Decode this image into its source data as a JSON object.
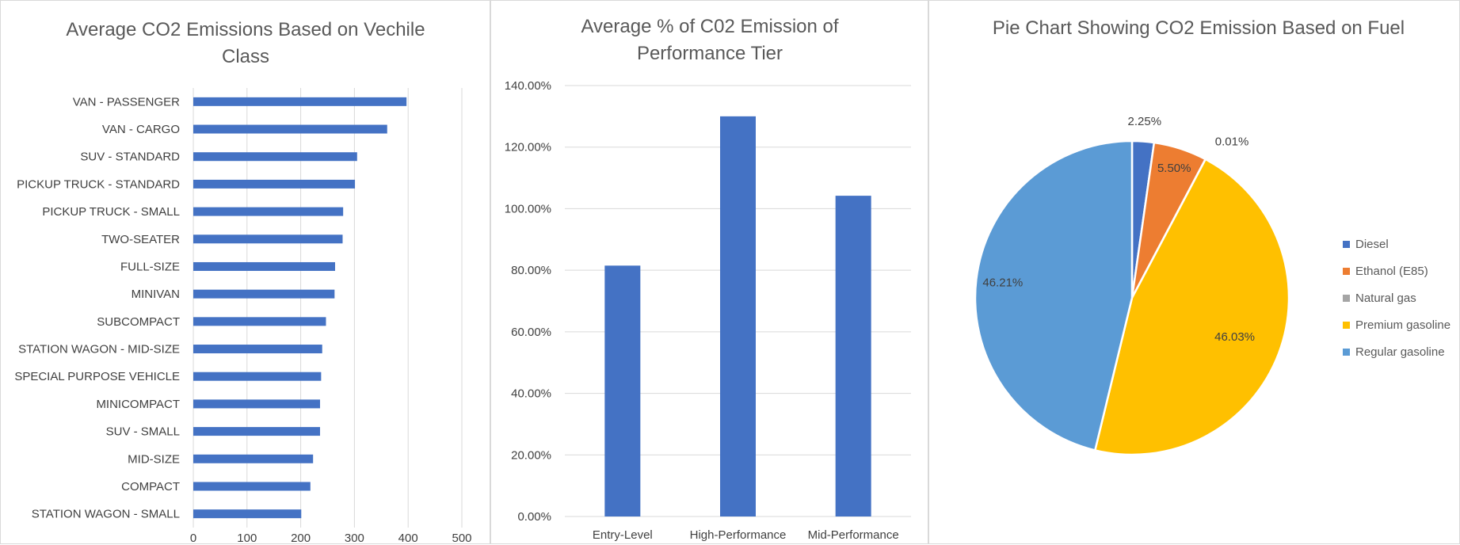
{
  "chart_data": [
    {
      "type": "bar",
      "orientation": "horizontal",
      "title_lines": [
        "Average CO2 Emissions Based on Vechile",
        "Class"
      ],
      "categories": [
        "VAN - PASSENGER",
        "VAN - CARGO",
        "SUV - STANDARD",
        "PICKUP TRUCK - STANDARD",
        "PICKUP TRUCK - SMALL",
        "TWO-SEATER",
        "FULL-SIZE",
        "MINIVAN",
        "SUBCOMPACT",
        "STATION WAGON - MID-SIZE",
        "SPECIAL PURPOSE VEHICLE",
        "MINICOMPACT",
        "SUV - SMALL",
        "MID-SIZE",
        "COMPACT",
        "STATION WAGON - SMALL"
      ],
      "values": [
        397,
        361,
        305,
        301,
        279,
        278,
        264,
        263,
        247,
        240,
        238,
        236,
        236,
        223,
        218,
        201
      ],
      "xlim": [
        0,
        500
      ],
      "xticks": [
        "0",
        "100",
        "200",
        "300",
        "400",
        "500"
      ],
      "grid": true,
      "color": "#4472C4"
    },
    {
      "type": "bar",
      "orientation": "vertical",
      "title_lines": [
        "Average % of C02 Emission of",
        "Performance Tier"
      ],
      "categories": [
        "Entry-Level",
        "High-Performance",
        "Mid-Performance"
      ],
      "values": [
        81.5,
        130.0,
        104.2
      ],
      "ylim": [
        0,
        140
      ],
      "yticks": [
        "0.00%",
        "20.00%",
        "40.00%",
        "60.00%",
        "80.00%",
        "100.00%",
        "120.00%",
        "140.00%"
      ],
      "grid": true,
      "color": "#4472C4"
    },
    {
      "type": "pie",
      "title": "Pie Chart Showing CO2 Emission Based on Fuel",
      "legend_position": "right",
      "slices": [
        {
          "label": "Diesel",
          "value": 2.25,
          "display": "2.25%",
          "color": "#4472C4"
        },
        {
          "label": "Ethanol (E85)",
          "value": 5.5,
          "display": "5.50%",
          "color": "#ED7D31"
        },
        {
          "label": "Natural gas",
          "value": 0.01,
          "display": "0.01%",
          "color": "#A5A5A5"
        },
        {
          "label": "Premium gasoline",
          "value": 46.03,
          "display": "46.03%",
          "color": "#FFC000"
        },
        {
          "label": "Regular gasoline",
          "value": 46.21,
          "display": "46.21%",
          "color": "#5B9BD5"
        }
      ]
    }
  ]
}
